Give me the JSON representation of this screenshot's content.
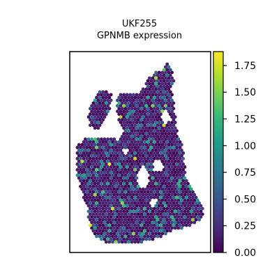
{
  "chart_data": {
    "type": "heatmap",
    "subtype": "spatial-hex-spots",
    "title_lines": [
      "UKF255",
      "GPNMB expression"
    ],
    "colormap": "viridis",
    "color_range": [
      0,
      1.88
    ],
    "colorbar_ticks": [
      0.0,
      0.25,
      0.5,
      0.75,
      1.0,
      1.25,
      1.5,
      1.75
    ],
    "colorbar_tick_labels": [
      "0.00",
      "0.25",
      "0.50",
      "0.75",
      "1.00",
      "1.25",
      "1.50",
      "1.75"
    ],
    "colorbar_position": "right",
    "axes_visible": false,
    "spot_value_summary": "most spots near 0.0-0.2; scattered spots 0.3-1.0; a few hot spots up to ~1.8"
  }
}
